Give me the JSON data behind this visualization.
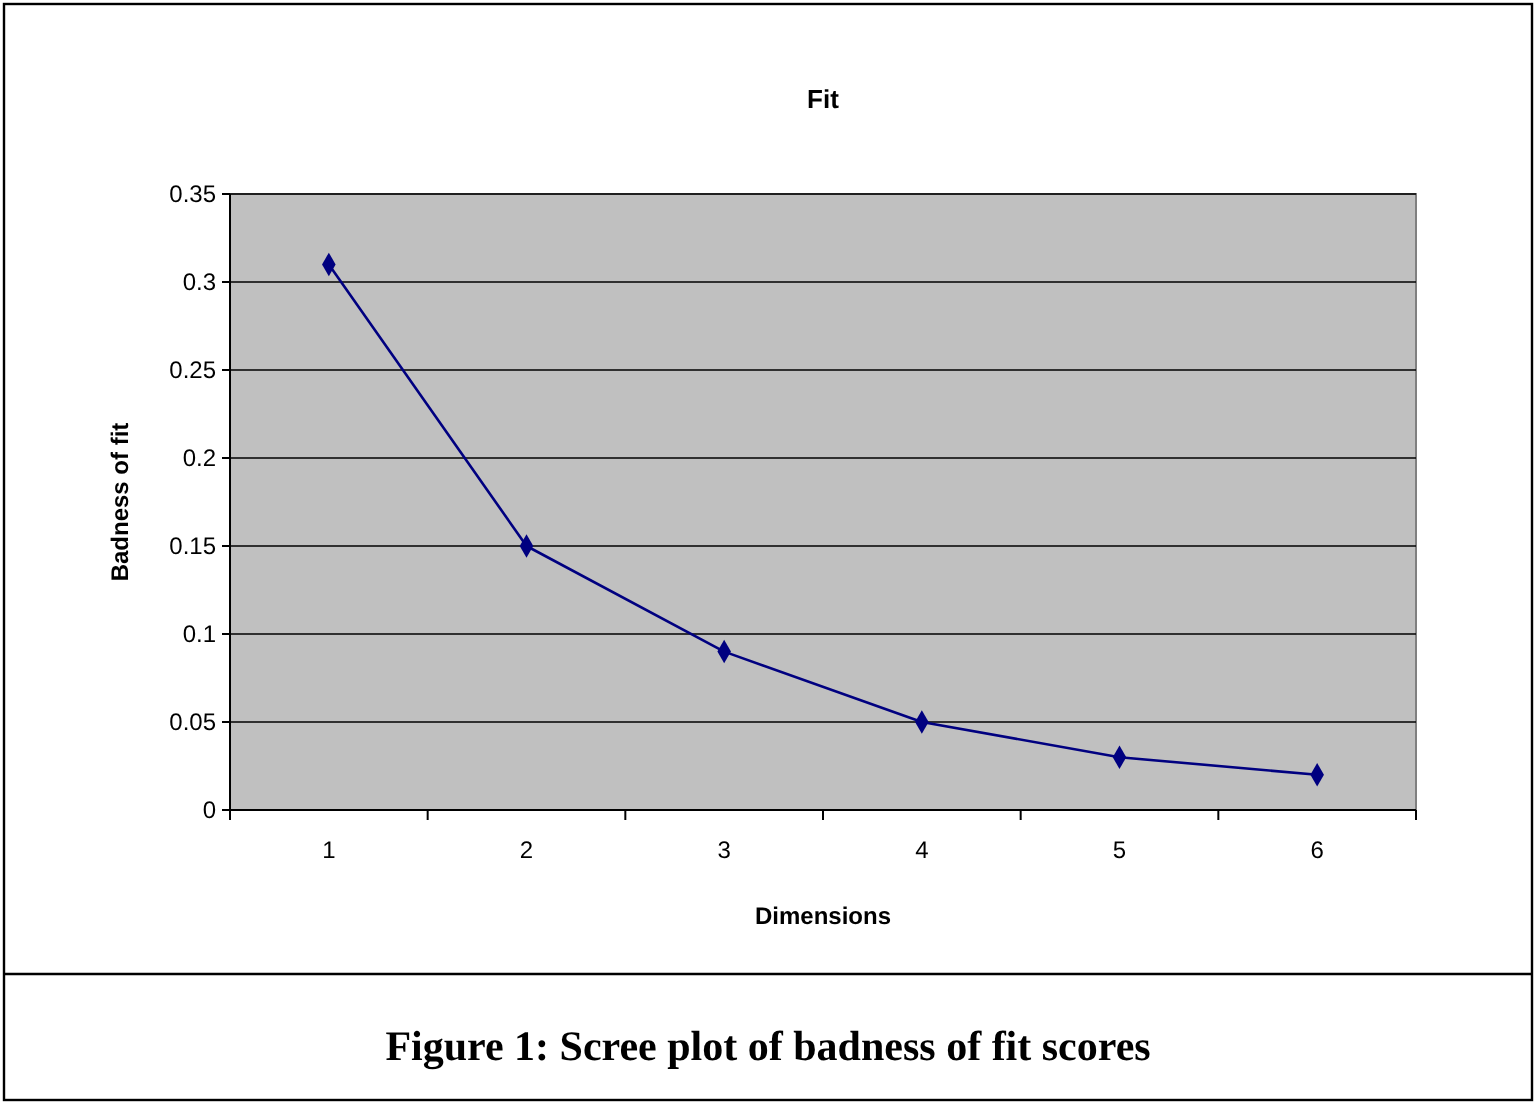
{
  "chart_data": {
    "type": "line",
    "title": "Fit",
    "xlabel": "Dimensions",
    "ylabel": "Badness of fit",
    "categories": [
      "1",
      "2",
      "3",
      "4",
      "5",
      "6"
    ],
    "series": [
      {
        "color": "#000080",
        "values": [
          0.31,
          0.15,
          0.09,
          0.05,
          0.03,
          0.02
        ]
      }
    ],
    "ylim": [
      0,
      0.35
    ],
    "yticks": [
      0,
      0.05,
      0.1,
      0.15,
      0.2,
      0.25,
      0.3,
      0.35
    ],
    "grid": "y",
    "marker": "diamond",
    "annotations": [
      "Figure 1: Scree plot of badness of fit scores"
    ]
  }
}
